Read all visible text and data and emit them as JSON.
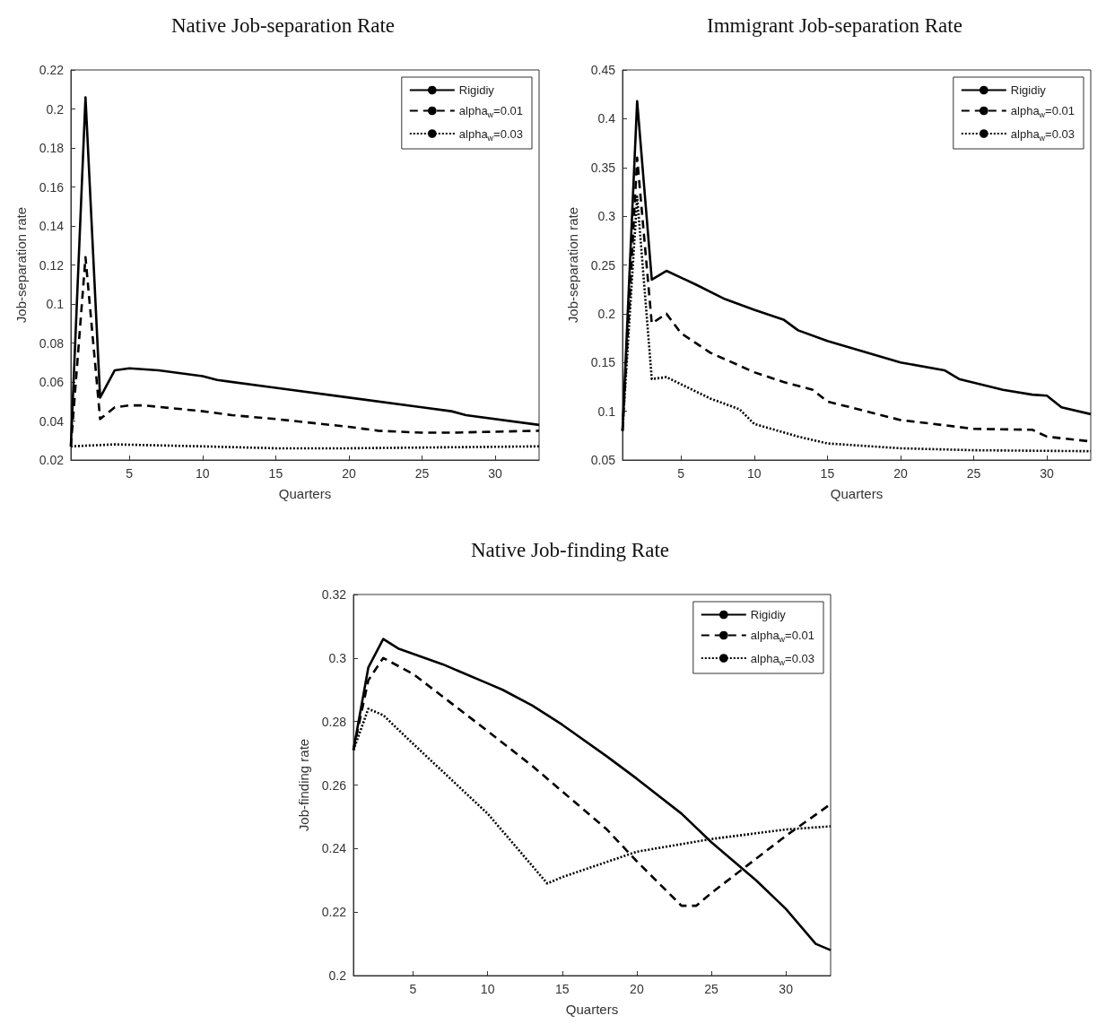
{
  "chart_data": [
    {
      "type": "line",
      "title": "Native Job-separation Rate",
      "xlabel": "Quarters",
      "ylabel": "Job-separation rate",
      "xlim": [
        1,
        33
      ],
      "xticks": [
        5,
        10,
        15,
        20,
        25,
        30
      ],
      "ylim": [
        0.02,
        0.22
      ],
      "yticks": [
        0.02,
        0.04,
        0.06,
        0.08,
        0.1,
        0.12,
        0.14,
        0.16,
        0.18,
        0.2,
        0.22
      ],
      "legend": "top right",
      "series": [
        {
          "name": "Rigidiy",
          "color": "#000000",
          "line_style": "solid",
          "x": [
            1,
            2,
            3,
            4,
            5,
            7,
            10,
            11,
            15,
            20,
            25,
            27,
            28,
            33
          ],
          "values": [
            0.027,
            0.206,
            0.052,
            0.066,
            0.067,
            0.066,
            0.063,
            0.061,
            0.057,
            0.052,
            0.047,
            0.045,
            0.043,
            0.038
          ]
        },
        {
          "name": "alpha$_{w}$=0.01",
          "color": "#000000",
          "line_style": "dashed",
          "x": [
            1,
            2,
            3,
            4,
            5,
            6,
            10,
            11,
            12,
            15,
            20,
            22,
            25,
            27,
            33
          ],
          "values": [
            0.027,
            0.124,
            0.041,
            0.047,
            0.048,
            0.048,
            0.045,
            0.044,
            0.043,
            0.041,
            0.037,
            0.035,
            0.034,
            0.034,
            0.035
          ]
        },
        {
          "name": "alpha$_{w}$=0.03",
          "color": "#000000",
          "line_style": "dotted",
          "x": [
            1,
            4,
            10,
            15,
            20,
            33
          ],
          "values": [
            0.027,
            0.028,
            0.027,
            0.026,
            0.026,
            0.027
          ]
        }
      ]
    },
    {
      "type": "line",
      "title": "Immigrant Job-separation Rate",
      "xlabel": "Quarters",
      "ylabel": "Job-separation rate",
      "xlim": [
        1,
        33
      ],
      "xticks": [
        5,
        10,
        15,
        20,
        25,
        30
      ],
      "ylim": [
        0.05,
        0.45
      ],
      "yticks": [
        0.05,
        0.1,
        0.15,
        0.2,
        0.25,
        0.3,
        0.35,
        0.4,
        0.45
      ],
      "legend": "top right",
      "series": [
        {
          "name": "Rigidiy",
          "color": "#000000",
          "line_style": "solid",
          "x": [
            1,
            2,
            3,
            4,
            6,
            8,
            10,
            12,
            13,
            15,
            20,
            23,
            24,
            27,
            29,
            30,
            31,
            33
          ],
          "values": [
            0.08,
            0.418,
            0.235,
            0.244,
            0.23,
            0.215,
            0.204,
            0.194,
            0.183,
            0.172,
            0.15,
            0.142,
            0.133,
            0.122,
            0.117,
            0.116,
            0.104,
            0.097
          ]
        },
        {
          "name": "alpha$_{w}$=0.01",
          "color": "#000000",
          "line_style": "dashed",
          "x": [
            1,
            2,
            3,
            4,
            5,
            7,
            10,
            12,
            14,
            15,
            20,
            25,
            29,
            30,
            33
          ],
          "values": [
            0.08,
            0.36,
            0.19,
            0.2,
            0.18,
            0.16,
            0.14,
            0.13,
            0.122,
            0.11,
            0.091,
            0.082,
            0.081,
            0.074,
            0.069
          ]
        },
        {
          "name": "alpha$_{w}$=0.03",
          "color": "#000000",
          "line_style": "dotted",
          "x": [
            1,
            2,
            3,
            4,
            7,
            9,
            10,
            13,
            15,
            20,
            25,
            33
          ],
          "values": [
            0.08,
            0.32,
            0.133,
            0.135,
            0.113,
            0.102,
            0.087,
            0.074,
            0.067,
            0.062,
            0.06,
            0.059
          ]
        }
      ]
    },
    {
      "type": "line",
      "title": "Native Job-finding Rate",
      "xlabel": "Quarters",
      "ylabel": "Job-finding rate",
      "xlim": [
        1,
        33
      ],
      "xticks": [
        5,
        10,
        15,
        20,
        25,
        30
      ],
      "ylim": [
        0.2,
        0.32
      ],
      "yticks": [
        0.2,
        0.22,
        0.24,
        0.26,
        0.28,
        0.3,
        0.32
      ],
      "legend": "top right",
      "series": [
        {
          "name": "Rigidiy",
          "color": "#000000",
          "line_style": "solid",
          "x": [
            1,
            2,
            3,
            4,
            7,
            10,
            11,
            13,
            15,
            18,
            20,
            23,
            25,
            28,
            30,
            32,
            33
          ],
          "values": [
            0.271,
            0.297,
            0.306,
            0.303,
            0.298,
            0.292,
            0.29,
            0.285,
            0.279,
            0.269,
            0.262,
            0.251,
            0.242,
            0.23,
            0.221,
            0.21,
            0.208
          ]
        },
        {
          "name": "alpha$_{w}$=0.01",
          "color": "#000000",
          "line_style": "dashed",
          "x": [
            1,
            2,
            3,
            5,
            10,
            13,
            15,
            18,
            20,
            23,
            24,
            25,
            30,
            33
          ],
          "values": [
            0.271,
            0.293,
            0.3,
            0.295,
            0.277,
            0.266,
            0.258,
            0.246,
            0.236,
            0.222,
            0.222,
            0.226,
            0.244,
            0.254
          ]
        },
        {
          "name": "alpha$_{w}$=0.03",
          "color": "#000000",
          "line_style": "dotted",
          "x": [
            1,
            2,
            3,
            5,
            10,
            14,
            15,
            20,
            25,
            30,
            33
          ],
          "values": [
            0.271,
            0.284,
            0.282,
            0.273,
            0.251,
            0.229,
            0.231,
            0.239,
            0.243,
            0.246,
            0.247
          ]
        }
      ]
    }
  ]
}
